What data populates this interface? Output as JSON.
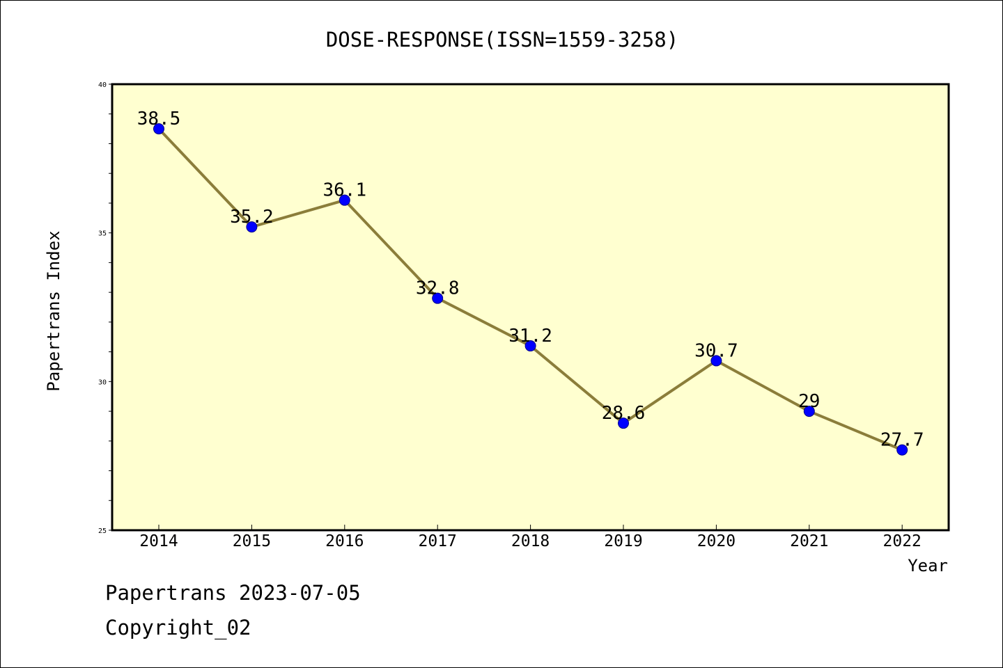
{
  "chart_data": {
    "type": "line",
    "title": "DOSE-RESPONSE(ISSN=1559-3258)",
    "xlabel": "Year",
    "ylabel": "Papertrans Index",
    "categories": [
      "2014",
      "2015",
      "2016",
      "2017",
      "2018",
      "2019",
      "2020",
      "2021",
      "2022"
    ],
    "series": [
      {
        "values": [
          38.5,
          35.2,
          36.1,
          32.8,
          31.2,
          28.6,
          30.7,
          29,
          27.7
        ],
        "labels": [
          "38.5",
          "35.2",
          "36.1",
          "32.8",
          "31.2",
          "28.6",
          "30.7",
          "29",
          "27.7"
        ]
      }
    ],
    "ylim": [
      25,
      40
    ],
    "yticks": [
      "25",
      "30",
      "35",
      "40"
    ],
    "grid": false,
    "legend": "none",
    "colors": {
      "plot_background": "#ffffd0",
      "line": "#8b7d3a",
      "marker": "#0000ff",
      "marker_edge": "#00008b"
    }
  },
  "footer": {
    "line1": "Papertrans 2023-07-05",
    "line2": "Copyright_02"
  }
}
